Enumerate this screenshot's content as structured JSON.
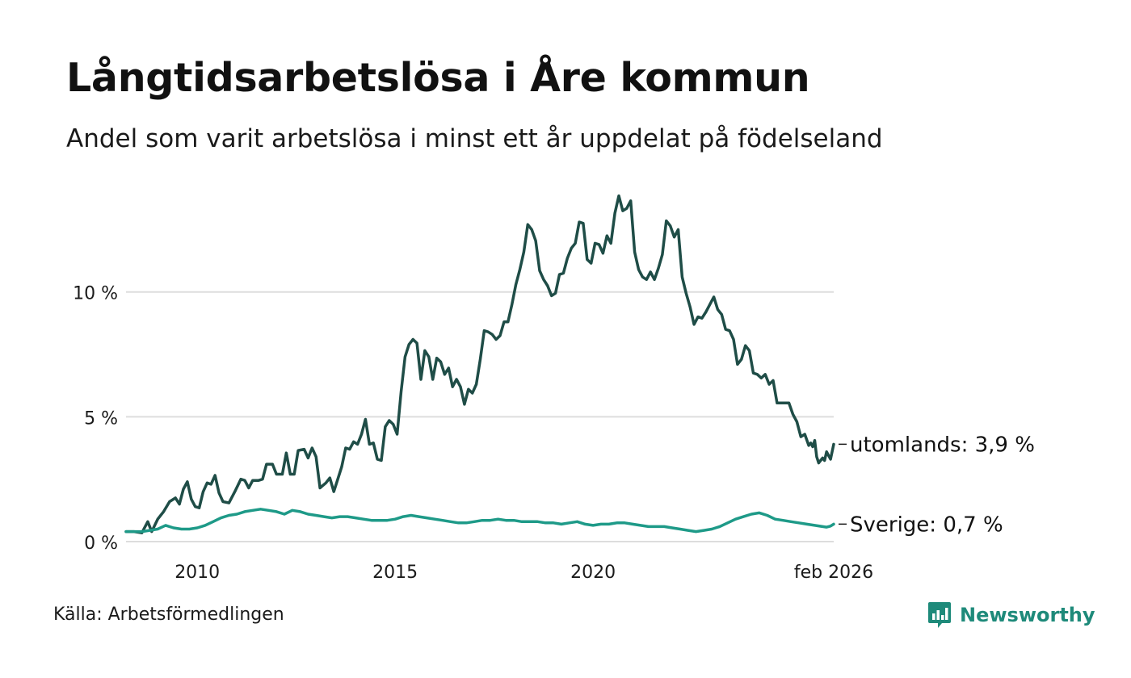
{
  "title": "Långtidsarbetslösa i Åre kommun",
  "subtitle": "Andel som varit arbetslösa i minst ett år uppdelat på födelseland",
  "source": "Källa: Arbetsförmedlingen",
  "brand": {
    "name": "Newsworthy",
    "icon": "newsworthy-logo-icon"
  },
  "colors": {
    "utomlands": "#1f4d47",
    "sverige": "#1e9a88",
    "grid": "#dddddd",
    "brand": "#1e8a7a"
  },
  "chart_data": {
    "type": "line",
    "title": "Långtidsarbetslösa i Åre kommun",
    "xlabel": "",
    "ylabel": "",
    "xlim": [
      2008.2,
      2026.08
    ],
    "ylim": [
      0,
      14
    ],
    "y_ticks": [
      {
        "value": 0,
        "label": "0 %"
      },
      {
        "value": 5,
        "label": "5 %"
      },
      {
        "value": 10,
        "label": "10 %"
      }
    ],
    "x_ticks": [
      {
        "value": 2010,
        "label": "2010"
      },
      {
        "value": 2015,
        "label": "2015"
      },
      {
        "value": 2020,
        "label": "2020"
      },
      {
        "value": 2026.08,
        "label": "feb 2026"
      }
    ],
    "grid": true,
    "series": [
      {
        "name": "utomlands",
        "end_label": "utomlands: 3,9 %",
        "color": "#1f4d47",
        "points": [
          [
            2008.2,
            0.4
          ],
          [
            2008.4,
            0.4
          ],
          [
            2008.6,
            0.35
          ],
          [
            2008.75,
            0.8
          ],
          [
            2008.85,
            0.4
          ],
          [
            2009.0,
            0.9
          ],
          [
            2009.15,
            1.2
          ],
          [
            2009.3,
            1.6
          ],
          [
            2009.45,
            1.75
          ],
          [
            2009.55,
            1.5
          ],
          [
            2009.65,
            2.1
          ],
          [
            2009.75,
            2.4
          ],
          [
            2009.85,
            1.7
          ],
          [
            2009.95,
            1.4
          ],
          [
            2010.05,
            1.35
          ],
          [
            2010.15,
            2.0
          ],
          [
            2010.25,
            2.35
          ],
          [
            2010.35,
            2.3
          ],
          [
            2010.45,
            2.65
          ],
          [
            2010.55,
            1.95
          ],
          [
            2010.65,
            1.6
          ],
          [
            2010.8,
            1.55
          ],
          [
            2010.95,
            2.0
          ],
          [
            2011.1,
            2.5
          ],
          [
            2011.2,
            2.45
          ],
          [
            2011.3,
            2.15
          ],
          [
            2011.4,
            2.45
          ],
          [
            2011.55,
            2.45
          ],
          [
            2011.65,
            2.5
          ],
          [
            2011.75,
            3.1
          ],
          [
            2011.9,
            3.1
          ],
          [
            2012.0,
            2.7
          ],
          [
            2012.15,
            2.7
          ],
          [
            2012.25,
            3.55
          ],
          [
            2012.35,
            2.7
          ],
          [
            2012.45,
            2.7
          ],
          [
            2012.55,
            3.65
          ],
          [
            2012.7,
            3.7
          ],
          [
            2012.8,
            3.35
          ],
          [
            2012.9,
            3.75
          ],
          [
            2013.0,
            3.4
          ],
          [
            2013.1,
            2.15
          ],
          [
            2013.25,
            2.35
          ],
          [
            2013.35,
            2.55
          ],
          [
            2013.45,
            2.0
          ],
          [
            2013.55,
            2.5
          ],
          [
            2013.65,
            3.0
          ],
          [
            2013.75,
            3.75
          ],
          [
            2013.85,
            3.7
          ],
          [
            2013.95,
            4.0
          ],
          [
            2014.05,
            3.9
          ],
          [
            2014.15,
            4.3
          ],
          [
            2014.25,
            4.9
          ],
          [
            2014.35,
            3.9
          ],
          [
            2014.45,
            3.95
          ],
          [
            2014.55,
            3.3
          ],
          [
            2014.65,
            3.25
          ],
          [
            2014.75,
            4.6
          ],
          [
            2014.85,
            4.85
          ],
          [
            2014.95,
            4.7
          ],
          [
            2015.05,
            4.3
          ],
          [
            2015.15,
            6.0
          ],
          [
            2015.25,
            7.4
          ],
          [
            2015.35,
            7.9
          ],
          [
            2015.45,
            8.1
          ],
          [
            2015.55,
            7.95
          ],
          [
            2015.65,
            6.5
          ],
          [
            2015.75,
            7.65
          ],
          [
            2015.85,
            7.4
          ],
          [
            2015.95,
            6.5
          ],
          [
            2016.05,
            7.35
          ],
          [
            2016.15,
            7.2
          ],
          [
            2016.25,
            6.7
          ],
          [
            2016.35,
            6.95
          ],
          [
            2016.45,
            6.2
          ],
          [
            2016.55,
            6.5
          ],
          [
            2016.65,
            6.2
          ],
          [
            2016.75,
            5.5
          ],
          [
            2016.85,
            6.1
          ],
          [
            2016.95,
            5.95
          ],
          [
            2017.05,
            6.3
          ],
          [
            2017.15,
            7.3
          ],
          [
            2017.25,
            8.45
          ],
          [
            2017.35,
            8.4
          ],
          [
            2017.45,
            8.3
          ],
          [
            2017.55,
            8.1
          ],
          [
            2017.65,
            8.25
          ],
          [
            2017.75,
            8.8
          ],
          [
            2017.85,
            8.8
          ],
          [
            2017.95,
            9.5
          ],
          [
            2018.05,
            10.3
          ],
          [
            2018.15,
            10.9
          ],
          [
            2018.25,
            11.6
          ],
          [
            2018.35,
            12.7
          ],
          [
            2018.45,
            12.5
          ],
          [
            2018.55,
            12.05
          ],
          [
            2018.65,
            10.85
          ],
          [
            2018.75,
            10.5
          ],
          [
            2018.85,
            10.25
          ],
          [
            2018.95,
            9.85
          ],
          [
            2019.05,
            9.95
          ],
          [
            2019.15,
            10.7
          ],
          [
            2019.25,
            10.75
          ],
          [
            2019.35,
            11.35
          ],
          [
            2019.45,
            11.75
          ],
          [
            2019.55,
            11.95
          ],
          [
            2019.65,
            12.8
          ],
          [
            2019.75,
            12.75
          ],
          [
            2019.85,
            11.3
          ],
          [
            2019.95,
            11.15
          ],
          [
            2020.05,
            11.95
          ],
          [
            2020.15,
            11.9
          ],
          [
            2020.25,
            11.55
          ],
          [
            2020.35,
            12.25
          ],
          [
            2020.45,
            11.95
          ],
          [
            2020.55,
            13.15
          ],
          [
            2020.65,
            13.85
          ],
          [
            2020.75,
            13.25
          ],
          [
            2020.85,
            13.35
          ],
          [
            2020.95,
            13.65
          ],
          [
            2021.05,
            11.6
          ],
          [
            2021.15,
            10.9
          ],
          [
            2021.25,
            10.6
          ],
          [
            2021.35,
            10.5
          ],
          [
            2021.45,
            10.8
          ],
          [
            2021.55,
            10.5
          ],
          [
            2021.65,
            10.95
          ],
          [
            2021.75,
            11.5
          ],
          [
            2021.85,
            12.85
          ],
          [
            2021.95,
            12.65
          ],
          [
            2022.05,
            12.2
          ],
          [
            2022.15,
            12.5
          ],
          [
            2022.25,
            10.6
          ],
          [
            2022.35,
            9.95
          ],
          [
            2022.45,
            9.4
          ],
          [
            2022.55,
            8.7
          ],
          [
            2022.65,
            9.0
          ],
          [
            2022.75,
            8.95
          ],
          [
            2022.85,
            9.2
          ],
          [
            2022.95,
            9.5
          ],
          [
            2023.05,
            9.8
          ],
          [
            2023.15,
            9.3
          ],
          [
            2023.25,
            9.1
          ],
          [
            2023.35,
            8.5
          ],
          [
            2023.45,
            8.45
          ],
          [
            2023.55,
            8.1
          ],
          [
            2023.65,
            7.1
          ],
          [
            2023.75,
            7.3
          ],
          [
            2023.85,
            7.85
          ],
          [
            2023.95,
            7.65
          ],
          [
            2024.05,
            6.75
          ],
          [
            2024.15,
            6.7
          ],
          [
            2024.25,
            6.55
          ],
          [
            2024.35,
            6.7
          ],
          [
            2024.45,
            6.3
          ],
          [
            2024.55,
            6.45
          ],
          [
            2024.65,
            5.55
          ],
          [
            2024.75,
            5.55
          ],
          [
            2024.85,
            5.55
          ],
          [
            2024.95,
            5.55
          ],
          [
            2025.05,
            5.1
          ],
          [
            2025.15,
            4.8
          ],
          [
            2025.25,
            4.2
          ],
          [
            2025.35,
            4.3
          ],
          [
            2025.45,
            3.85
          ],
          [
            2025.5,
            3.95
          ],
          [
            2025.55,
            3.8
          ],
          [
            2025.6,
            4.05
          ],
          [
            2025.65,
            3.4
          ],
          [
            2025.7,
            3.15
          ],
          [
            2025.75,
            3.25
          ],
          [
            2025.8,
            3.35
          ],
          [
            2025.85,
            3.25
          ],
          [
            2025.9,
            3.6
          ],
          [
            2025.95,
            3.45
          ],
          [
            2026.0,
            3.3
          ],
          [
            2026.08,
            3.9
          ]
        ]
      },
      {
        "name": "Sverige",
        "end_label": "Sverige: 0,7 %",
        "color": "#1e9a88",
        "points": [
          [
            2008.2,
            0.4
          ],
          [
            2008.4,
            0.4
          ],
          [
            2008.6,
            0.4
          ],
          [
            2008.8,
            0.45
          ],
          [
            2009.0,
            0.5
          ],
          [
            2009.2,
            0.65
          ],
          [
            2009.4,
            0.55
          ],
          [
            2009.6,
            0.5
          ],
          [
            2009.8,
            0.5
          ],
          [
            2010.0,
            0.55
          ],
          [
            2010.2,
            0.65
          ],
          [
            2010.4,
            0.8
          ],
          [
            2010.6,
            0.95
          ],
          [
            2010.8,
            1.05
          ],
          [
            2011.0,
            1.1
          ],
          [
            2011.2,
            1.2
          ],
          [
            2011.4,
            1.25
          ],
          [
            2011.6,
            1.3
          ],
          [
            2011.8,
            1.25
          ],
          [
            2012.0,
            1.2
          ],
          [
            2012.2,
            1.1
          ],
          [
            2012.4,
            1.25
          ],
          [
            2012.6,
            1.2
          ],
          [
            2012.8,
            1.1
          ],
          [
            2013.0,
            1.05
          ],
          [
            2013.2,
            1.0
          ],
          [
            2013.4,
            0.95
          ],
          [
            2013.6,
            1.0
          ],
          [
            2013.8,
            1.0
          ],
          [
            2014.0,
            0.95
          ],
          [
            2014.2,
            0.9
          ],
          [
            2014.4,
            0.85
          ],
          [
            2014.6,
            0.85
          ],
          [
            2014.8,
            0.85
          ],
          [
            2015.0,
            0.9
          ],
          [
            2015.2,
            1.0
          ],
          [
            2015.4,
            1.05
          ],
          [
            2015.6,
            1.0
          ],
          [
            2015.8,
            0.95
          ],
          [
            2016.0,
            0.9
          ],
          [
            2016.2,
            0.85
          ],
          [
            2016.4,
            0.8
          ],
          [
            2016.6,
            0.75
          ],
          [
            2016.8,
            0.75
          ],
          [
            2017.0,
            0.8
          ],
          [
            2017.2,
            0.85
          ],
          [
            2017.4,
            0.85
          ],
          [
            2017.6,
            0.9
          ],
          [
            2017.8,
            0.85
          ],
          [
            2018.0,
            0.85
          ],
          [
            2018.2,
            0.8
          ],
          [
            2018.4,
            0.8
          ],
          [
            2018.6,
            0.8
          ],
          [
            2018.8,
            0.75
          ],
          [
            2019.0,
            0.75
          ],
          [
            2019.2,
            0.7
          ],
          [
            2019.4,
            0.75
          ],
          [
            2019.6,
            0.8
          ],
          [
            2019.8,
            0.7
          ],
          [
            2020.0,
            0.65
          ],
          [
            2020.2,
            0.7
          ],
          [
            2020.4,
            0.7
          ],
          [
            2020.6,
            0.75
          ],
          [
            2020.8,
            0.75
          ],
          [
            2021.0,
            0.7
          ],
          [
            2021.2,
            0.65
          ],
          [
            2021.4,
            0.6
          ],
          [
            2021.6,
            0.6
          ],
          [
            2021.8,
            0.6
          ],
          [
            2022.0,
            0.55
          ],
          [
            2022.2,
            0.5
          ],
          [
            2022.4,
            0.45
          ],
          [
            2022.6,
            0.4
          ],
          [
            2022.8,
            0.45
          ],
          [
            2023.0,
            0.5
          ],
          [
            2023.2,
            0.6
          ],
          [
            2023.4,
            0.75
          ],
          [
            2023.6,
            0.9
          ],
          [
            2023.8,
            1.0
          ],
          [
            2024.0,
            1.1
          ],
          [
            2024.2,
            1.15
          ],
          [
            2024.4,
            1.05
          ],
          [
            2024.6,
            0.9
          ],
          [
            2024.8,
            0.85
          ],
          [
            2025.0,
            0.8
          ],
          [
            2025.2,
            0.75
          ],
          [
            2025.4,
            0.7
          ],
          [
            2025.6,
            0.65
          ],
          [
            2025.8,
            0.6
          ],
          [
            2025.9,
            0.58
          ],
          [
            2026.0,
            0.62
          ],
          [
            2026.08,
            0.7
          ]
        ]
      }
    ]
  }
}
